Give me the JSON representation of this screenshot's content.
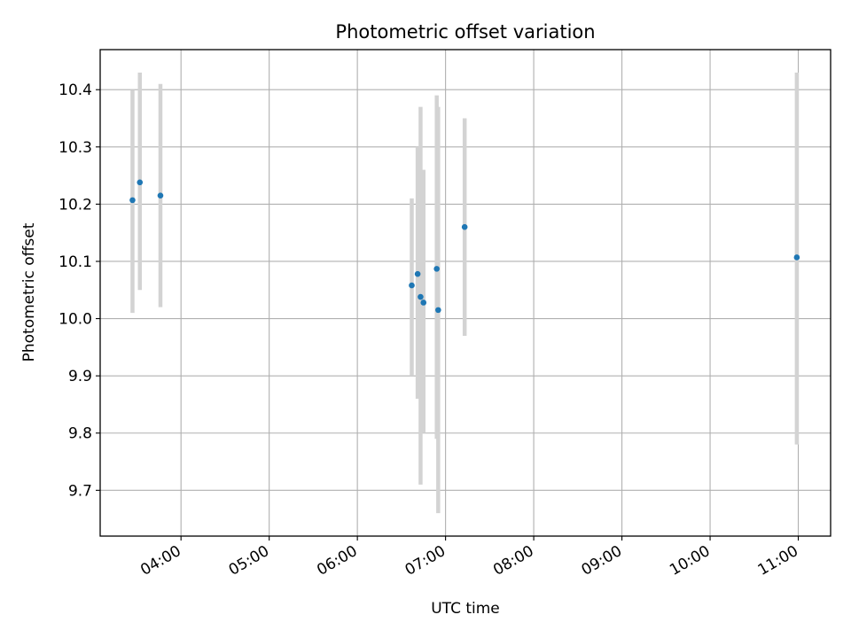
{
  "chart_data": {
    "type": "scatter",
    "title": "Photometric offset variation",
    "xlabel": "UTC time",
    "ylabel": "Photometric offset",
    "grid": true,
    "x_tick_labels": [
      "04:00",
      "05:00",
      "06:00",
      "07:00",
      "08:00",
      "09:00",
      "10:00",
      "11:00"
    ],
    "x_ticks": [
      "04:00",
      "05:00",
      "06:00",
      "07:00",
      "08:00",
      "09:00",
      "10:00",
      "11:00"
    ],
    "xlim": [
      "03:05",
      "11:22"
    ],
    "y_ticks": [
      9.7,
      9.8,
      9.9,
      10.0,
      10.1,
      10.2,
      10.3,
      10.4
    ],
    "y_tick_labels": [
      "9.7",
      "9.8",
      "9.9",
      "10.0",
      "10.1",
      "10.2",
      "10.3",
      "10.4"
    ],
    "ylim": [
      9.62,
      10.47
    ],
    "series": [
      {
        "marker_color": "#1f77b4",
        "errorbar_color": "#d3d3d3",
        "points": [
          {
            "x": "03:27",
            "y": 10.207,
            "ylow": 10.01,
            "yhigh": 10.4
          },
          {
            "x": "03:32",
            "y": 10.238,
            "ylow": 10.05,
            "yhigh": 10.43
          },
          {
            "x": "03:46",
            "y": 10.215,
            "ylow": 10.02,
            "yhigh": 10.41
          },
          {
            "x": "06:37",
            "y": 10.058,
            "ylow": 9.9,
            "yhigh": 10.21
          },
          {
            "x": "06:41",
            "y": 10.078,
            "ylow": 9.86,
            "yhigh": 10.3
          },
          {
            "x": "06:43",
            "y": 10.038,
            "ylow": 9.71,
            "yhigh": 10.37
          },
          {
            "x": "06:45",
            "y": 10.028,
            "ylow": 9.8,
            "yhigh": 10.26
          },
          {
            "x": "06:54",
            "y": 10.087,
            "ylow": 9.79,
            "yhigh": 10.39
          },
          {
            "x": "06:55",
            "y": 10.015,
            "ylow": 9.66,
            "yhigh": 10.37
          },
          {
            "x": "07:13",
            "y": 10.16,
            "ylow": 9.97,
            "yhigh": 10.35
          },
          {
            "x": "10:59",
            "y": 10.107,
            "ylow": 9.78,
            "yhigh": 10.43
          }
        ]
      }
    ]
  }
}
